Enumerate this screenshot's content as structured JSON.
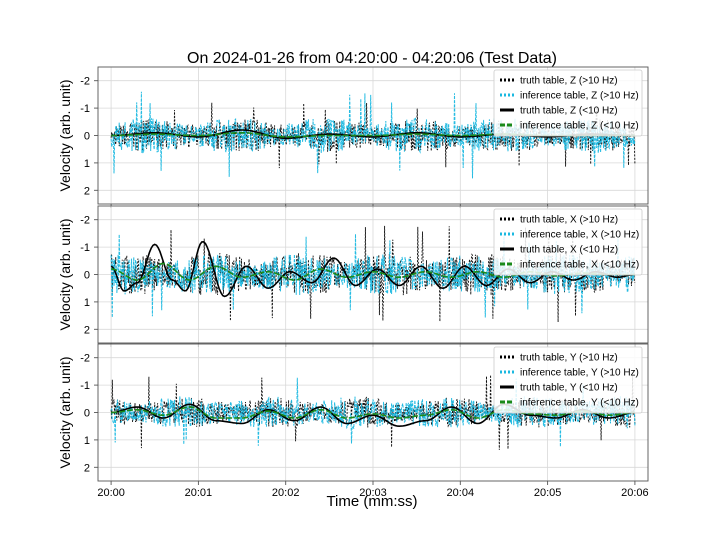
{
  "chart_data": {
    "type": "line",
    "title": "On 2024-01-26 from 04:20:00 - 04:20:06 (Test Data)",
    "xlabel": "Time (mm:ss)",
    "x_ticks": [
      "20:00",
      "20:01",
      "20:02",
      "20:03",
      "20:04",
      "20:05",
      "20:06"
    ],
    "xlim": [
      -0.15,
      6.15
    ],
    "x_units": "seconds after 04:20:00",
    "colors": {
      "truth_high": "#000000",
      "inference_high": "#1ab8e0",
      "truth_low": "#000000",
      "inference_low": "#1a8a1a",
      "grid": "#d8d8d8",
      "axes": "#555555"
    },
    "panels": [
      {
        "component": "Z",
        "ylabel": "Velocity (arb. unit)",
        "ylim": [
          2.5,
          -2.5
        ],
        "y_ticks": [
          "-2",
          "-1",
          "0",
          "1",
          "2"
        ],
        "y_tick_values": [
          -2,
          -1,
          0,
          1,
          2
        ],
        "legend_position": "top-right",
        "series": [
          {
            "name": "truth table, Z (>10 Hz)",
            "style": "dashed",
            "band": "high",
            "amplitude": 0.6,
            "peak_abs": 1.3
          },
          {
            "name": "inference table, Z (>10 Hz)",
            "style": "dashed",
            "band": "high",
            "amplitude": 0.65,
            "peak_abs": 1.6
          },
          {
            "name": "truth table, Z (<10 Hz)",
            "style": "solid",
            "band": "low",
            "x": [
              0.0,
              0.5,
              1.0,
              1.5,
              2.0,
              2.5,
              3.0,
              3.5,
              4.0,
              4.5,
              5.0,
              5.5,
              6.0
            ],
            "y": [
              0.0,
              -0.1,
              0.05,
              -0.2,
              0.1,
              -0.05,
              0.05,
              -0.1,
              0.05,
              -0.05,
              0.05,
              -0.05,
              0.0
            ]
          },
          {
            "name": "inference table, Z (<10 Hz)",
            "style": "dashed",
            "band": "low",
            "x": [
              0.0,
              0.5,
              1.0,
              1.5,
              2.0,
              2.5,
              3.0,
              3.5,
              4.0,
              4.5,
              5.0,
              5.5,
              6.0
            ],
            "y": [
              0.0,
              -0.05,
              0.0,
              -0.1,
              0.05,
              0.0,
              0.0,
              -0.05,
              0.0,
              -0.05,
              0.0,
              0.0,
              0.0
            ]
          }
        ]
      },
      {
        "component": "X",
        "ylabel": "Velocity (arb. unit)",
        "ylim": [
          2.5,
          -2.5
        ],
        "y_ticks": [
          "-2",
          "-1",
          "0",
          "1",
          "2"
        ],
        "y_tick_values": [
          -2,
          -1,
          0,
          1,
          2
        ],
        "legend_position": "top-right",
        "series": [
          {
            "name": "truth table, X (>10 Hz)",
            "style": "dashed",
            "band": "high",
            "amplitude": 0.8,
            "peak_abs": 1.8
          },
          {
            "name": "inference table, X (>10 Hz)",
            "style": "dashed",
            "band": "high",
            "amplitude": 0.75,
            "peak_abs": 1.6
          },
          {
            "name": "truth table, X (<10 Hz)",
            "style": "solid",
            "band": "low",
            "x": [
              0.0,
              0.15,
              0.3,
              0.5,
              0.7,
              0.85,
              1.05,
              1.3,
              1.55,
              1.8,
              2.05,
              2.3,
              2.55,
              2.8,
              3.05,
              3.3,
              3.55,
              3.8,
              4.05,
              4.3,
              4.55,
              4.8,
              5.05,
              5.3,
              5.55,
              5.8,
              6.0
            ],
            "y": [
              -0.3,
              0.6,
              0.3,
              -1.1,
              0.2,
              0.6,
              -1.2,
              0.8,
              -0.3,
              0.5,
              -0.1,
              0.3,
              -0.6,
              0.4,
              -0.2,
              0.4,
              -0.3,
              0.5,
              -0.3,
              0.4,
              -0.2,
              0.3,
              -0.1,
              0.2,
              -0.1,
              0.1,
              0.0
            ]
          },
          {
            "name": "inference table, X (<10 Hz)",
            "style": "dashed",
            "band": "low",
            "x": [
              0.0,
              0.3,
              0.6,
              0.9,
              1.2,
              1.5,
              1.8,
              2.1,
              2.4,
              2.7,
              3.0,
              3.3,
              3.6,
              3.9,
              4.2,
              4.5,
              4.8,
              5.1,
              5.4,
              5.7,
              6.0
            ],
            "y": [
              -0.2,
              0.2,
              -0.4,
              0.2,
              -0.3,
              0.1,
              -0.1,
              0.2,
              -0.2,
              0.1,
              -0.1,
              0.1,
              -0.1,
              0.1,
              -0.1,
              0.1,
              -0.1,
              0.05,
              -0.05,
              0.0,
              0.0
            ]
          }
        ]
      },
      {
        "component": "Y",
        "ylabel": "Velocity (arb. unit)",
        "ylim": [
          2.5,
          -2.5
        ],
        "y_ticks": [
          "-2",
          "-1",
          "0",
          "1",
          "2"
        ],
        "y_tick_values": [
          -2,
          -1,
          0,
          1,
          2
        ],
        "legend_position": "top-right",
        "series": [
          {
            "name": "truth table, Y (>10 Hz)",
            "style": "dashed",
            "band": "high",
            "amplitude": 0.55,
            "peak_abs": 1.4
          },
          {
            "name": "inference table, Y (>10 Hz)",
            "style": "dashed",
            "band": "high",
            "amplitude": 0.6,
            "peak_abs": 1.4
          },
          {
            "name": "truth table, Y (<10 Hz)",
            "style": "solid",
            "band": "low",
            "x": [
              0.0,
              0.3,
              0.6,
              0.9,
              1.2,
              1.5,
              1.8,
              2.1,
              2.4,
              2.7,
              3.0,
              3.3,
              3.6,
              3.9,
              4.2,
              4.5,
              4.8,
              5.1,
              5.4,
              5.7,
              6.0
            ],
            "y": [
              0.0,
              -0.2,
              0.2,
              -0.3,
              0.3,
              0.4,
              -0.1,
              0.3,
              -0.2,
              0.4,
              0.1,
              0.5,
              0.3,
              -0.2,
              0.4,
              -0.3,
              0.1,
              0.2,
              -0.1,
              0.2,
              0.0
            ]
          },
          {
            "name": "inference table, Y (<10 Hz)",
            "style": "dashed",
            "band": "low",
            "x": [
              0.0,
              0.3,
              0.6,
              0.9,
              1.2,
              1.5,
              1.8,
              2.1,
              2.4,
              2.7,
              3.0,
              3.3,
              3.6,
              3.9,
              4.2,
              4.5,
              4.8,
              5.1,
              5.4,
              5.7,
              6.0
            ],
            "y": [
              0.0,
              -0.1,
              0.1,
              -0.2,
              0.2,
              0.2,
              -0.05,
              0.2,
              -0.1,
              0.2,
              0.05,
              0.2,
              0.1,
              -0.1,
              0.2,
              -0.1,
              0.05,
              0.1,
              -0.05,
              0.1,
              0.0
            ]
          }
        ]
      }
    ]
  }
}
